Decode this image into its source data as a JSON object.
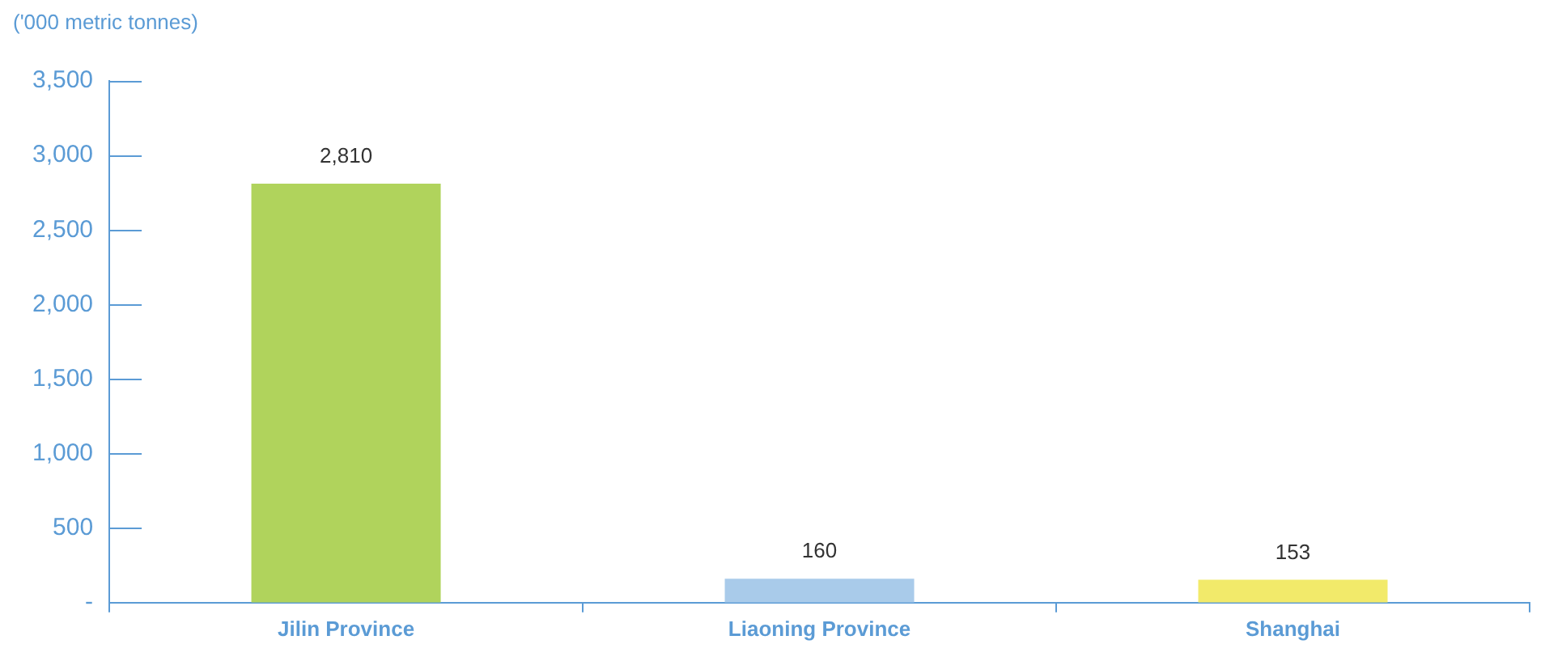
{
  "chart_data": {
    "type": "bar",
    "ylabel": "('000 metric tonnes)",
    "categories": [
      "Jilin Province",
      "Liaoning Province",
      "Shanghai"
    ],
    "values": [
      2810,
      160,
      153
    ],
    "value_labels": [
      "2,810",
      "160",
      "153"
    ],
    "colors": [
      "#b0d35c",
      "#a9cbea",
      "#f2ea6a"
    ],
    "ylim": [
      0,
      3500
    ],
    "yticks": [
      {
        "value": 0,
        "label": "-"
      },
      500,
      {
        "value": 1000,
        "label": "1,000"
      },
      {
        "value": 1500,
        "label": "1,500"
      },
      {
        "value": 2000,
        "label": "2,000"
      },
      {
        "value": 2500,
        "label": "2,500"
      },
      {
        "value": 3000,
        "label": "3,000"
      },
      {
        "value": 3500,
        "label": "3,500"
      }
    ],
    "grid": false,
    "legend": false
  }
}
